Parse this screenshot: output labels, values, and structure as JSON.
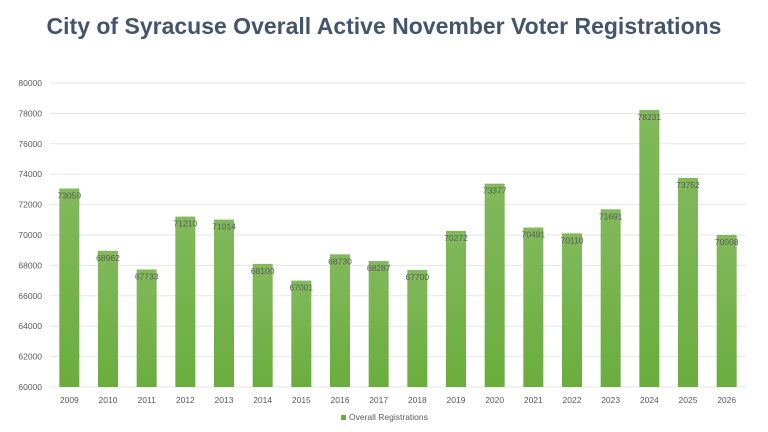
{
  "chart_data": {
    "type": "bar",
    "title": "City of Syracuse Overall Active November Voter Registrations",
    "categories": [
      "2009",
      "2010",
      "2011",
      "2012",
      "2013",
      "2014",
      "2015",
      "2016",
      "2017",
      "2018",
      "2019",
      "2020",
      "2021",
      "2022",
      "2023",
      "2024",
      "2025",
      "2026"
    ],
    "series": [
      {
        "name": "Overall Registrations",
        "values": [
          73059,
          68962,
          67733,
          71210,
          71014,
          68100,
          67001,
          68730,
          68287,
          67700,
          70272,
          73377,
          70491,
          70110,
          71691,
          78231,
          73752,
          70008
        ]
      }
    ],
    "ylim": [
      60000,
      80000
    ],
    "yticks": [
      60000,
      62000,
      64000,
      66000,
      68000,
      70000,
      72000,
      74000,
      76000,
      78000,
      80000
    ],
    "grid": true,
    "legend": "bottom",
    "colors": {
      "bar_top": "#82b95c",
      "bar_bottom": "#6aad3d",
      "grid": "#e6e6e6",
      "text": "#595959",
      "title": "#44546a"
    }
  }
}
